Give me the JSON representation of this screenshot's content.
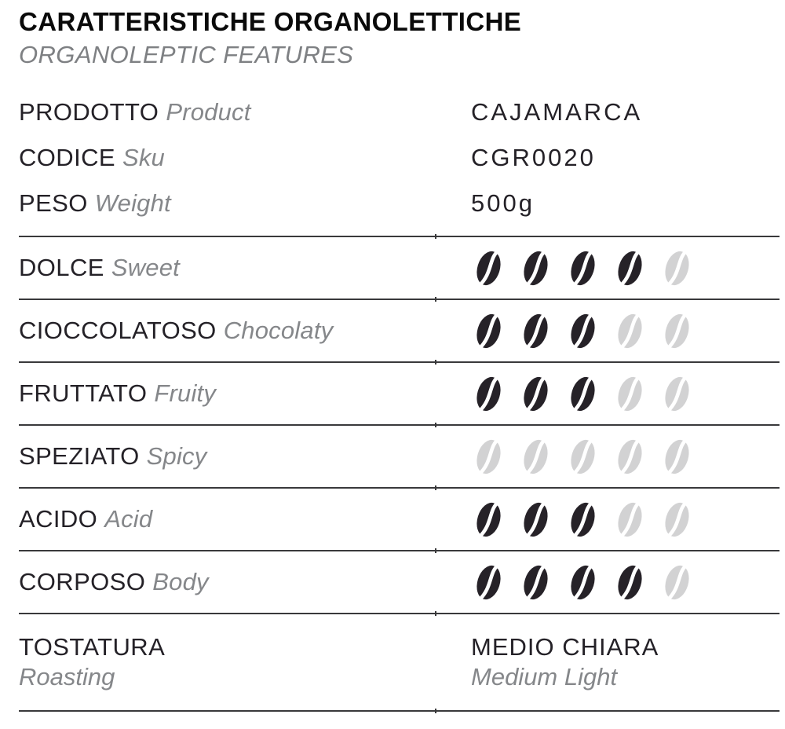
{
  "header": {
    "title": "CARATTERISTICHE ORGANOLETTICHE",
    "subtitle": "ORGANOLEPTIC FEATURES"
  },
  "info": [
    {
      "label_it": "PRODOTTO",
      "label_en": "Product",
      "value": "CAJAMARCA"
    },
    {
      "label_it": "CODICE",
      "label_en": "Sku",
      "value": "CGR0020"
    },
    {
      "label_it": "PESO",
      "label_en": "Weight",
      "value": "500g"
    }
  ],
  "flavors": [
    {
      "label_it": "DOLCE",
      "label_en": "Sweet",
      "rating": 4,
      "max": 5
    },
    {
      "label_it": "CIOCCOLATOSO",
      "label_en": "Chocolaty",
      "rating": 3,
      "max": 5
    },
    {
      "label_it": "FRUTTATO",
      "label_en": "Fruity",
      "rating": 3,
      "max": 5
    },
    {
      "label_it": "SPEZIATO",
      "label_en": "Spicy",
      "rating": 0,
      "max": 5
    },
    {
      "label_it": "ACIDO",
      "label_en": "Acid",
      "rating": 3,
      "max": 5
    },
    {
      "label_it": "CORPOSO",
      "label_en": "Body",
      "rating": 4,
      "max": 5
    }
  ],
  "roasting": {
    "label_it": "TOSTATURA",
    "label_en": "Roasting",
    "value_it": "MEDIO CHIARA",
    "value_en": "Medium Light"
  },
  "icons": {
    "bean_filled": "coffee-bean-filled-icon",
    "bean_empty": "coffee-bean-empty-icon"
  },
  "colors": {
    "bean_filled": "#262228",
    "bean_empty": "#d2d2d3",
    "text_dark": "#242127",
    "text_gray": "#85878a",
    "rule": "#39393b"
  }
}
